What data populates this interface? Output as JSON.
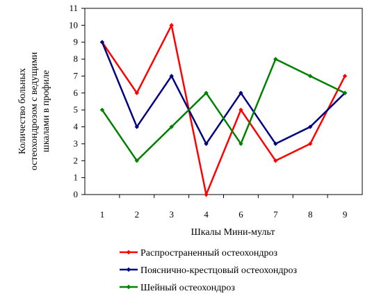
{
  "chart_data": {
    "type": "line",
    "title": "",
    "xlabel": "Шкалы Мини-мульт",
    "ylabel_lines": [
      "Количество больных",
      "остеохондрозом с ведущими",
      "шкалами в профиле"
    ],
    "categories": [
      "1",
      "2",
      "3",
      "4",
      "6",
      "7",
      "8",
      "9"
    ],
    "ylim": [
      0,
      11
    ],
    "yticks": [
      "0",
      "1",
      "2",
      "3",
      "4",
      "5",
      "6",
      "7",
      "8",
      "9",
      "10",
      "11"
    ],
    "grid": false,
    "legend_position": "bottom",
    "series": [
      {
        "name": "Распространенный остеохондроз",
        "color": "#ff0000",
        "values": [
          9,
          6,
          10,
          0,
          5,
          2,
          3,
          7
        ]
      },
      {
        "name": "Пояснично-крестцовый остеохондроз",
        "color": "#000080",
        "values": [
          9,
          4,
          7,
          3,
          6,
          3,
          4,
          6
        ]
      },
      {
        "name": "Шейный остеохондроз",
        "color": "#008000",
        "values": [
          5,
          2,
          4,
          6,
          3,
          8,
          7,
          6
        ]
      }
    ]
  }
}
